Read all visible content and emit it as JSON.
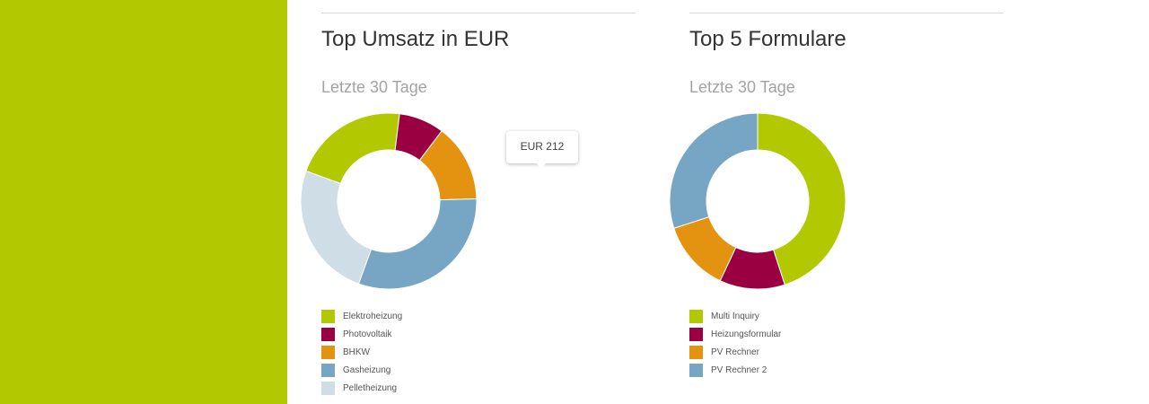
{
  "sidebar": {
    "color": "#b2c800"
  },
  "charts": [
    {
      "title": "Top Umsatz in EUR",
      "subtitle": "Letzte 30 Tage",
      "tooltip": "EUR 212",
      "highlighted_series": "Photovoltaik"
    },
    {
      "title": "Top 5 Formulare",
      "subtitle": "Letzte 30 Tage"
    }
  ],
  "chart_data": [
    {
      "type": "pie",
      "title": "Top Umsatz in EUR",
      "subtitle": "Letzte 30 Tage",
      "donut": true,
      "legend_position": "bottom-left",
      "series": [
        {
          "name": "Elektroheizung",
          "value": 18,
          "color": "#b2c800"
        },
        {
          "name": "Photovoltaik",
          "value": 7,
          "color": "#9a0041"
        },
        {
          "name": "BHKW",
          "value": 12,
          "color": "#e39310"
        },
        {
          "name": "Gasheizung",
          "value": 26,
          "color": "#77a6c5"
        },
        {
          "name": "Pelletheizung",
          "value": 21,
          "color": "#cfdde6"
        }
      ]
    },
    {
      "type": "pie",
      "title": "Top 5 Formulare",
      "subtitle": "Letzte 30 Tage",
      "donut": true,
      "legend_position": "bottom-left",
      "series": [
        {
          "name": "Multi Inquiry",
          "value": 45,
          "color": "#b2c800"
        },
        {
          "name": "Heizungsformular",
          "value": 12,
          "color": "#9a0041"
        },
        {
          "name": "PV Rechner",
          "value": 13,
          "color": "#e39310"
        },
        {
          "name": "PV Rechner 2",
          "value": 30,
          "color": "#77a6c5"
        }
      ]
    }
  ]
}
